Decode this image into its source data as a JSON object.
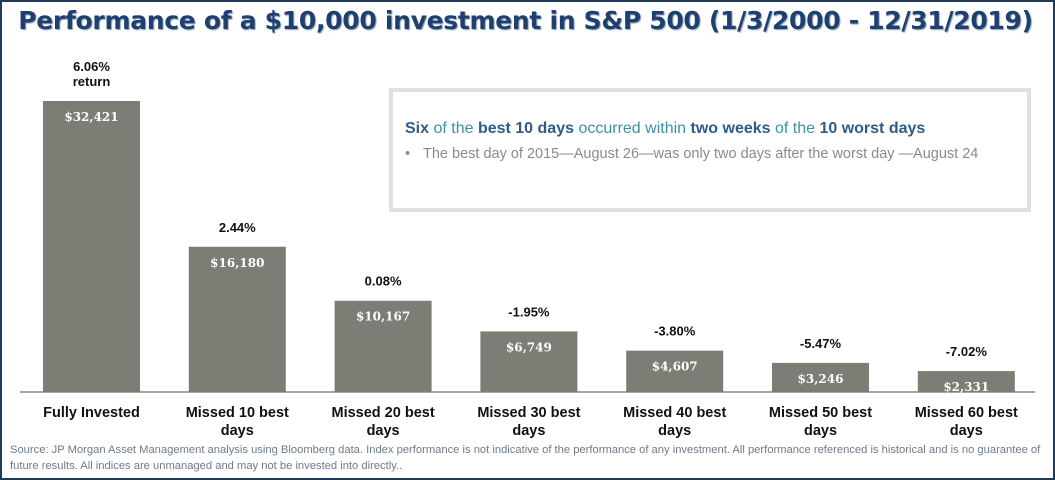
{
  "title": "Performance of a $10,000 investment in S&P 500 (1/3/2000 - 12/31/2019)",
  "callout": {
    "head_parts": [
      {
        "text": "Six",
        "bold": true
      },
      {
        "text": " of the ",
        "bold": false
      },
      {
        "text": "best 10 days",
        "bold": true
      },
      {
        "text": " occurred within ",
        "bold": false
      },
      {
        "text": "two weeks",
        "bold": true
      },
      {
        "text": " of the ",
        "bold": false
      },
      {
        "text": "10 worst days",
        "bold": true
      }
    ],
    "bullet_symbol": "•",
    "bullet": "The best day of 2015—August 26—was only two days after the worst day —August 24"
  },
  "source": "Source: JP Morgan Asset Management analysis using Bloomberg data. Index performance is not indicative of the performance of any investment. All performance referenced is historical and is no guarantee of future results. All indices are unmanaged and may not be invested into directly..",
  "colors": {
    "bar": "#7d7d75",
    "title": "#1f3f6e",
    "border": "#1f3a5c"
  },
  "chart_data": {
    "type": "bar",
    "title": "Performance of a $10,000 investment in S&P 500 (1/3/2000 - 12/31/2019)",
    "categories": [
      [
        "Fully Invested"
      ],
      [
        "Missed 10 best",
        "days"
      ],
      [
        "Missed 20 best",
        "days"
      ],
      [
        "Missed 30 best",
        "days"
      ],
      [
        "Missed 40 best",
        "days"
      ],
      [
        "Missed 50 best",
        "days"
      ],
      [
        "Missed 60 best",
        "days"
      ]
    ],
    "values": [
      32421,
      16180,
      10167,
      6749,
      4607,
      3246,
      2331
    ],
    "value_labels": [
      "$32,421",
      "$16,180",
      "$10,167",
      "$6,749",
      "$4,607",
      "$3,246",
      "$2,331"
    ],
    "return_labels": [
      [
        "6.06%",
        "return"
      ],
      [
        "2.44%"
      ],
      [
        "0.08%"
      ],
      [
        "-1.95%"
      ],
      [
        "-3.80%"
      ],
      [
        "-5.47%"
      ],
      [
        "-7.02%"
      ]
    ],
    "ylim": [
      0,
      32421
    ],
    "grid": false,
    "xlabel": "",
    "ylabel": ""
  }
}
